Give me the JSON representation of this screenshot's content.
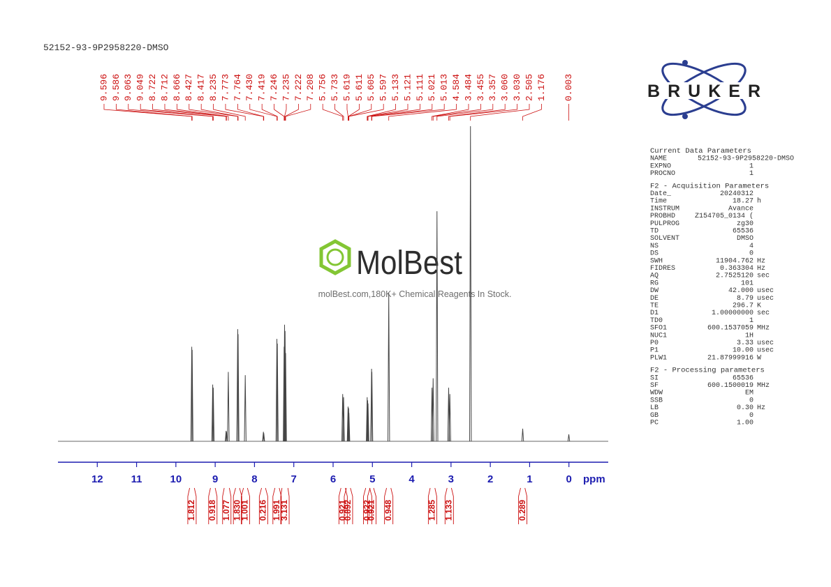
{
  "chart_data": {
    "type": "nmr",
    "title": "52152-93-9P2958220-DMSO",
    "x_label": "ppm",
    "xlim": [
      13,
      -1
    ],
    "xticks": [
      12,
      11,
      10,
      9,
      8,
      7,
      6,
      5,
      4,
      3,
      2,
      1,
      0
    ],
    "ylim": [
      0,
      100
    ],
    "peak_labels": [
      9.596,
      9.586,
      9.063,
      9.049,
      8.722,
      8.712,
      8.666,
      8.427,
      8.417,
      8.235,
      7.773,
      7.764,
      {
        "value": 7.43,
        "label": "7.430"
      },
      7.419,
      7.246,
      7.235,
      7.222,
      7.208,
      5.756,
      5.733,
      5.619,
      5.611,
      5.605,
      5.597,
      5.133,
      5.121,
      5.111,
      5.021,
      5.013,
      4.584,
      3.484,
      3.455,
      3.357,
      {
        "value": 3.06,
        "label": "3.060"
      },
      {
        "value": 3.03,
        "label": "3.030"
      },
      2.505,
      1.176,
      0.003
    ],
    "values": [
      30,
      29,
      18,
      17,
      3.3,
      3,
      22,
      35.6,
      34,
      21,
      3,
      2.6,
      32.5,
      31,
      30,
      37,
      35,
      28,
      15,
      14,
      11,
      10,
      10.5,
      9,
      14,
      13,
      12,
      23,
      22,
      47,
      17,
      20,
      73,
      17,
      15,
      100,
      4,
      2.2
    ],
    "integrals": [
      {
        "range": [
          9.65,
          9.53
        ],
        "value": 1.812
      },
      {
        "range": [
          9.12,
          9.0
        ],
        "value": 0.918
      },
      {
        "range": [
          8.77,
          8.64
        ],
        "value": 1.077
      },
      {
        "range": [
          8.48,
          8.38
        ],
        "value": {
          "value": 1.83,
          "label": "1.830"
        }
      },
      {
        "range": [
          8.28,
          8.18
        ],
        "value": 1.001
      },
      {
        "range": [
          7.82,
          7.72
        ],
        "value": 0.216
      },
      {
        "range": [
          7.48,
          7.37
        ],
        "value": 1.991
      },
      {
        "range": [
          7.3,
          7.15
        ],
        "value": 3.131
      },
      {
        "range": [
          5.8,
          5.69
        ],
        "value": 0.921
      },
      {
        "range": [
          5.66,
          5.56
        ],
        "value": 0.892
      },
      {
        "range": [
          5.17,
          5.07
        ],
        "value": 0.922
      },
      {
        "range": [
          5.06,
          4.97
        ],
        "value": 0.921
      },
      {
        "range": [
          4.64,
          4.53
        ],
        "value": 0.948
      },
      {
        "range": [
          3.53,
          3.41
        ],
        "value": 1.285
      },
      {
        "range": [
          3.1,
          2.99
        ],
        "value": 1.133
      },
      {
        "range": [
          1.23,
          1.12
        ],
        "value": 0.289
      }
    ],
    "color": "#444444",
    "label_color": "#cc1111",
    "axis_color": "#1c1cb0"
  },
  "logo": "BRUKER",
  "watermark": {
    "name": "MolBest",
    "tagline": "molBest.com,180K+ Chemical Reagents In Stock."
  },
  "parameters": [
    {
      "title": "Current Data Parameters",
      "rows": [
        [
          "NAME",
          "52152-93-9P2958220-DMSO"
        ],
        [
          "EXPNO",
          "1"
        ],
        [
          "PROCNO",
          "1"
        ]
      ]
    },
    {
      "title": "F2 - Acquisition Parameters",
      "rows": [
        [
          "Date_",
          "20240312"
        ],
        [
          "Time",
          "18.27",
          "h"
        ],
        [
          "INSTRUM",
          "Avance"
        ],
        [
          "PROBHD",
          "Z154705_0134 ("
        ],
        [
          "PULPROG",
          "zg30"
        ],
        [
          "TD",
          "65536"
        ],
        [
          "SOLVENT",
          "DMSO"
        ],
        [
          "NS",
          "4"
        ],
        [
          "DS",
          "0"
        ],
        [
          "SWH",
          "11904.762",
          "Hz"
        ],
        [
          "FIDRES",
          "0.363304",
          "Hz"
        ],
        [
          "AQ",
          "2.7525120",
          "sec"
        ],
        [
          "RG",
          "101"
        ],
        [
          "DW",
          "42.000",
          "usec"
        ],
        [
          "DE",
          "8.79",
          "usec"
        ],
        [
          "TE",
          "296.7",
          "K"
        ],
        [
          "D1",
          "1.00000000",
          "sec"
        ],
        [
          "TD0",
          "1"
        ],
        [
          "SFO1",
          "600.1537059",
          "MHz"
        ],
        [
          "NUC1",
          "1H"
        ],
        [
          "P0",
          "3.33",
          "usec"
        ],
        [
          "P1",
          "10.00",
          "usec"
        ],
        [
          "PLW1",
          "21.87999916",
          "W"
        ]
      ]
    },
    {
      "title": "F2 - Processing parameters",
      "rows": [
        [
          "SI",
          "65536"
        ],
        [
          "SF",
          "600.1500019",
          "MHz"
        ],
        [
          "WDW",
          "EM"
        ],
        [
          "SSB",
          "0"
        ],
        [
          "LB",
          "0.30",
          "Hz"
        ],
        [
          "GB",
          "0"
        ],
        [
          "PC",
          "1.00"
        ]
      ]
    }
  ]
}
